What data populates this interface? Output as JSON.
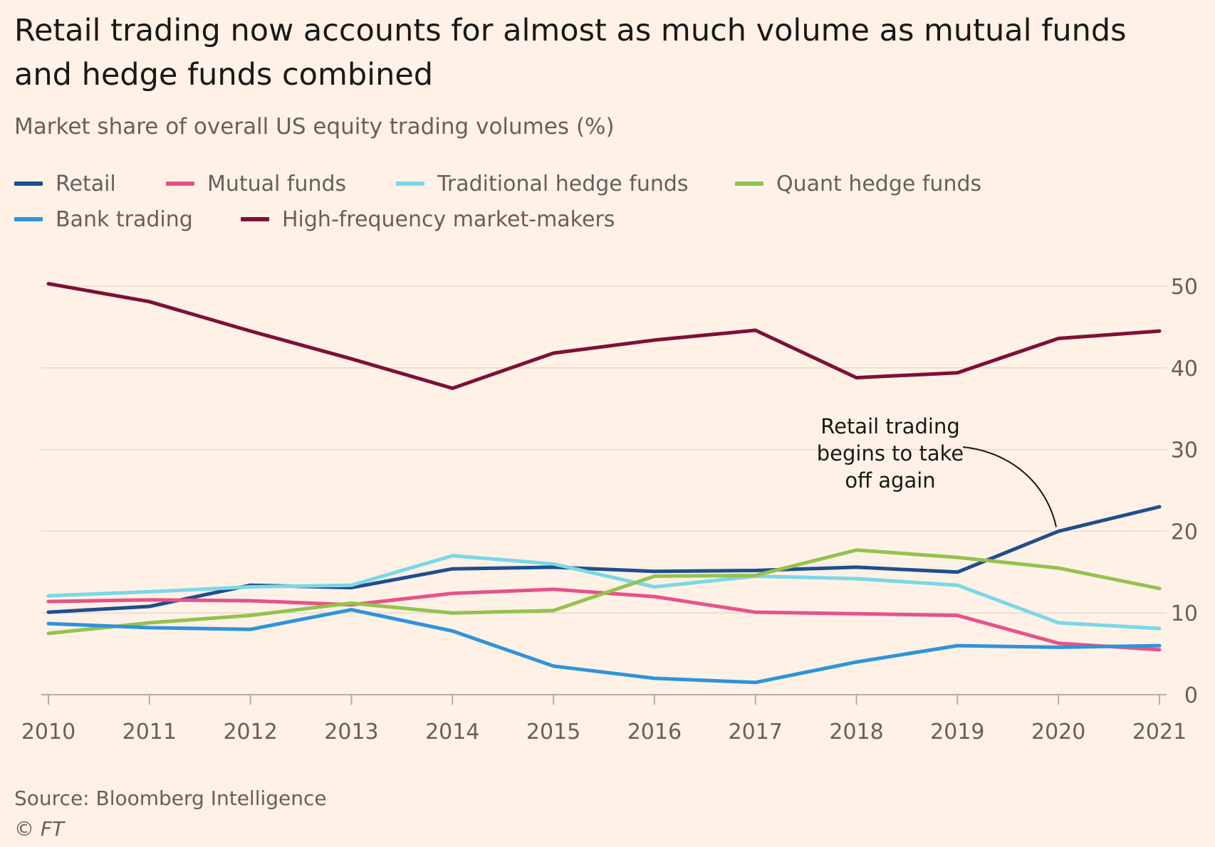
{
  "header": {
    "title": "Retail trading now accounts for almost as much volume as mutual funds and hedge funds combined",
    "subtitle": "Market share of overall US equity trading volumes (%)"
  },
  "footer": {
    "source": "Source: Bloomberg Intelligence",
    "copyright": "© FT"
  },
  "chart_data": {
    "type": "line",
    "title": "Retail trading now accounts for almost as much volume as mutual funds and hedge funds combined",
    "subtitle": "Market share of overall US equity trading volumes (%)",
    "xlabel": "",
    "ylabel": "",
    "x": [
      "2010",
      "2011",
      "2012",
      "2013",
      "2014",
      "2015",
      "2016",
      "2017",
      "2018",
      "2019",
      "2020",
      "2021"
    ],
    "ylim": [
      0,
      50
    ],
    "yticks": [
      "0",
      "10",
      "20",
      "30",
      "40",
      "50"
    ],
    "y_axis_side": "right",
    "grid": true,
    "legend_placement": "top-left",
    "series": [
      {
        "name": "Retail",
        "color": "#1F4E8F",
        "values": [
          10.1,
          10.8,
          13.4,
          13.1,
          15.4,
          15.6,
          15.1,
          15.2,
          15.6,
          15.0,
          20.0,
          23.0
        ]
      },
      {
        "name": "Mutual funds",
        "color": "#E6528A",
        "values": [
          11.4,
          11.6,
          11.5,
          11.0,
          12.4,
          12.9,
          12.0,
          10.1,
          9.9,
          9.7,
          6.3,
          5.5
        ]
      },
      {
        "name": "Traditional hedge funds",
        "color": "#79D8E6",
        "values": [
          12.1,
          12.6,
          13.2,
          13.4,
          17.0,
          16.0,
          13.2,
          14.5,
          14.2,
          13.4,
          8.8,
          8.1
        ]
      },
      {
        "name": "Quant hedge funds",
        "color": "#96C14E",
        "values": [
          7.5,
          8.8,
          9.7,
          11.2,
          10.0,
          10.3,
          14.5,
          14.6,
          17.7,
          16.8,
          15.5,
          13.0
        ]
      },
      {
        "name": "Bank trading",
        "color": "#2E93DB",
        "values": [
          8.7,
          8.2,
          8.0,
          10.4,
          7.8,
          3.5,
          2.0,
          1.5,
          4.0,
          6.0,
          5.8,
          6.0
        ]
      },
      {
        "name": "High-frequency market-makers",
        "color": "#7D1035",
        "values": [
          50.3,
          48.1,
          44.5,
          41.1,
          37.5,
          41.8,
          43.4,
          44.6,
          38.8,
          39.4,
          43.6,
          44.5
        ]
      }
    ],
    "annotations": [
      {
        "text_lines": [
          "Retail trading",
          "begins to take",
          "off again"
        ],
        "target_series": "Retail",
        "target_x": "2020"
      }
    ]
  }
}
